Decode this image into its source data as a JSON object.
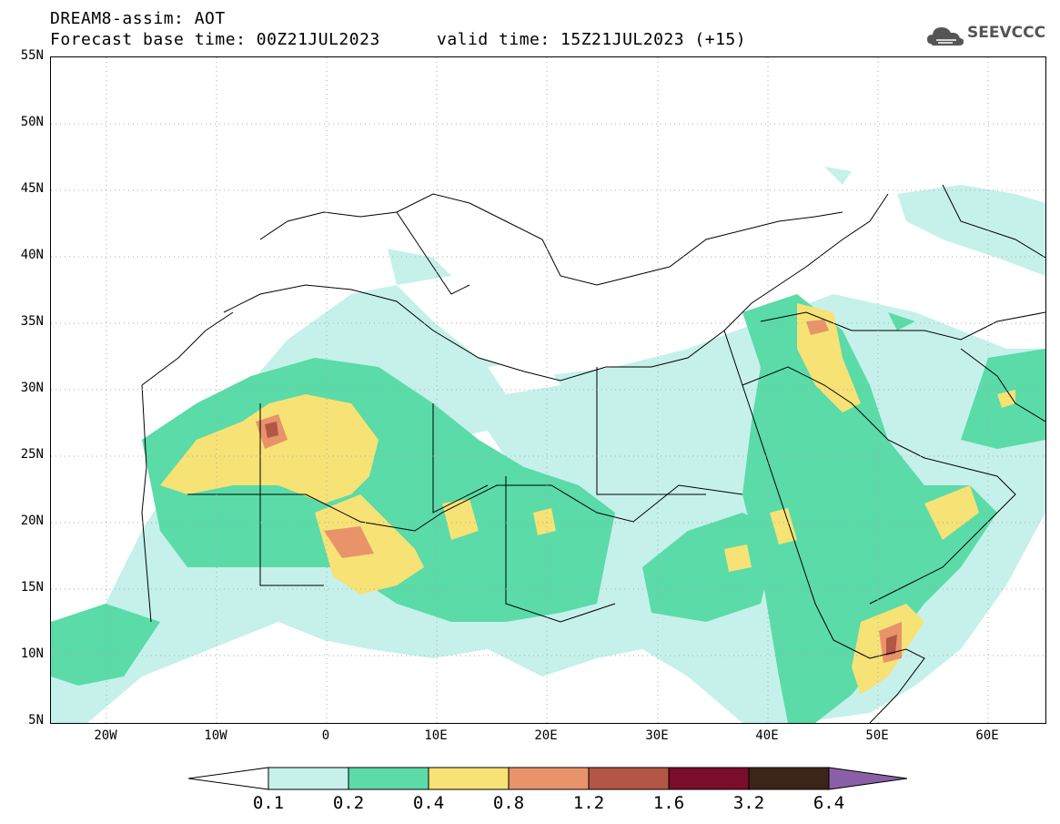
{
  "header": {
    "title": "DREAM8-assim: AOT",
    "base_time": "Forecast base time: 00Z21JUL2023",
    "valid_time": "valid time: 15Z21JUL2023 (+15)"
  },
  "logo": {
    "text": "SEEVCCC",
    "icon": "cloud-icon"
  },
  "map": {
    "lat_ticks": [
      "55N",
      "50N",
      "45N",
      "40N",
      "35N",
      "30N",
      "25N",
      "20N",
      "15N",
      "10N",
      "5N"
    ],
    "lon_ticks": [
      "20W",
      "10W",
      "0",
      "10E",
      "20E",
      "30E",
      "40E",
      "50E",
      "60E"
    ],
    "lat_range": [
      5,
      55
    ],
    "lon_range": [
      -25,
      65
    ]
  },
  "colorbar": {
    "labels": [
      "0.1",
      "0.2",
      "0.4",
      "0.8",
      "1.2",
      "1.6",
      "3.2",
      "6.4"
    ],
    "colors": [
      "#ffffff",
      "#c5f1ea",
      "#5adba8",
      "#f7e276",
      "#e8936a",
      "#b35645",
      "#7a0d2c",
      "#3d2418",
      "#8a5fa8"
    ]
  }
}
